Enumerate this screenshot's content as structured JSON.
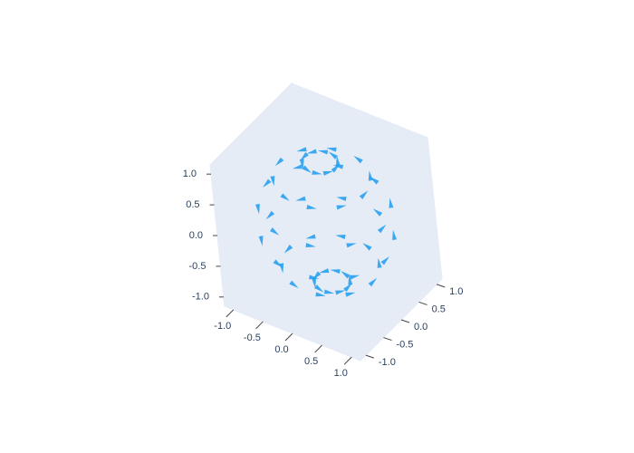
{
  "chart_data": {
    "type": "cone",
    "color": "#1f9cf0",
    "x": [
      0.26,
      0.21,
      0.08,
      -0.08,
      -0.21,
      -0.26,
      -0.21,
      -0.08,
      0.08,
      0.21,
      0.71,
      0.57,
      0.22,
      -0.22,
      -0.57,
      -0.71,
      -0.57,
      -0.22,
      0.22,
      0.57,
      0.97,
      0.78,
      0.3,
      -0.3,
      -0.78,
      -0.97,
      -0.78,
      -0.3,
      0.3,
      0.78,
      0.97,
      0.78,
      0.3,
      -0.3,
      -0.78,
      -0.97,
      -0.78,
      -0.3,
      0.3,
      0.78,
      0.71,
      0.57,
      0.22,
      -0.22,
      -0.57,
      -0.71,
      -0.57,
      -0.22,
      0.22,
      0.57,
      0.26,
      0.21,
      0.08,
      -0.08,
      -0.21,
      -0.26,
      -0.21,
      -0.08,
      0.08,
      0.21
    ],
    "y": [
      0,
      0.15,
      0.25,
      0.25,
      0.15,
      0,
      -0.15,
      -0.25,
      -0.25,
      -0.15,
      0,
      0.42,
      0.68,
      0.68,
      0.42,
      0,
      -0.42,
      -0.68,
      -0.68,
      -0.42,
      0,
      0.57,
      0.92,
      0.92,
      0.57,
      0,
      -0.57,
      -0.92,
      -0.92,
      -0.57,
      0,
      0.57,
      0.92,
      0.92,
      0.57,
      0,
      -0.57,
      -0.92,
      -0.92,
      -0.57,
      0,
      0.42,
      0.68,
      0.68,
      0.42,
      0,
      -0.42,
      -0.68,
      -0.68,
      -0.42,
      0,
      0.15,
      0.25,
      0.25,
      0.15,
      0,
      -0.15,
      -0.25,
      -0.25,
      -0.15
    ],
    "z": [
      0.97,
      0.97,
      0.97,
      0.97,
      0.97,
      0.97,
      0.97,
      0.97,
      0.97,
      0.97,
      0.71,
      0.71,
      0.71,
      0.71,
      0.71,
      0.71,
      0.71,
      0.71,
      0.71,
      0.71,
      0.26,
      0.26,
      0.26,
      0.26,
      0.26,
      0.26,
      0.26,
      0.26,
      0.26,
      0.26,
      -0.26,
      -0.26,
      -0.26,
      -0.26,
      -0.26,
      -0.26,
      -0.26,
      -0.26,
      -0.26,
      -0.26,
      -0.71,
      -0.71,
      -0.71,
      -0.71,
      -0.71,
      -0.71,
      -0.71,
      -0.71,
      -0.71,
      -0.71,
      -0.97,
      -0.97,
      -0.97,
      -0.97,
      -0.97,
      -0.97,
      -0.97,
      -0.97,
      -0.97,
      -0.97
    ],
    "u": [
      0,
      -0.15,
      -0.25,
      -0.25,
      -0.15,
      0,
      0.15,
      0.25,
      0.25,
      0.15,
      0,
      -0.42,
      -0.68,
      -0.68,
      -0.42,
      0,
      0.42,
      0.68,
      0.68,
      0.42,
      0,
      -0.57,
      -0.92,
      -0.92,
      -0.57,
      0,
      0.57,
      0.92,
      0.92,
      0.57,
      0,
      -0.57,
      -0.92,
      -0.92,
      -0.57,
      0,
      0.57,
      0.92,
      0.92,
      0.57,
      0,
      -0.42,
      -0.68,
      -0.68,
      -0.42,
      0,
      0.42,
      0.68,
      0.68,
      0.42,
      0,
      -0.15,
      -0.25,
      -0.25,
      -0.15,
      0,
      0.15,
      0.25,
      0.25,
      0.15
    ],
    "v": [
      0.26,
      0.21,
      0.08,
      -0.08,
      -0.21,
      -0.26,
      -0.21,
      -0.08,
      0.08,
      0.21,
      0.71,
      0.57,
      0.22,
      -0.22,
      -0.57,
      -0.71,
      -0.57,
      -0.22,
      0.22,
      0.57,
      0.97,
      0.78,
      0.3,
      -0.3,
      -0.78,
      -0.97,
      -0.78,
      -0.3,
      0.3,
      0.78,
      0.97,
      0.78,
      0.3,
      -0.3,
      -0.78,
      -0.97,
      -0.78,
      -0.3,
      0.3,
      0.78,
      0.71,
      0.57,
      0.22,
      -0.22,
      -0.57,
      -0.71,
      -0.57,
      -0.22,
      0.22,
      0.57,
      0.26,
      0.21,
      0.08,
      -0.08,
      -0.21,
      -0.26,
      -0.21,
      -0.08,
      0.08,
      0.21
    ],
    "w": [
      0,
      0,
      0,
      0,
      0,
      0,
      0,
      0,
      0,
      0,
      0,
      0,
      0,
      0,
      0,
      0,
      0,
      0,
      0,
      0,
      0,
      0,
      0,
      0,
      0,
      0,
      0,
      0,
      0,
      0,
      0,
      0,
      0,
      0,
      0,
      0,
      0,
      0,
      0,
      0,
      0,
      0,
      0,
      0,
      0,
      0,
      0,
      0,
      0,
      0,
      0,
      0,
      0,
      0,
      0,
      0,
      0,
      0,
      0,
      0
    ],
    "xlim": [
      -1.15,
      1.15
    ],
    "ylim": [
      -1.15,
      1.15
    ],
    "zlim": [
      -1.15,
      1.15
    ],
    "xticks": [
      {
        "value": -1,
        "label": "-1.0"
      },
      {
        "value": -0.5,
        "label": "-0.5"
      },
      {
        "value": 0,
        "label": "0.0"
      },
      {
        "value": 0.5,
        "label": "0.5"
      },
      {
        "value": 1,
        "label": "1.0"
      }
    ],
    "yticks": [
      {
        "value": -1,
        "label": "-1.0"
      },
      {
        "value": -0.5,
        "label": "-0.5"
      },
      {
        "value": 0,
        "label": "0.0"
      },
      {
        "value": 0.5,
        "label": "0.5"
      },
      {
        "value": 1,
        "label": "1.0"
      }
    ],
    "zticks": [
      {
        "value": -1,
        "label": "-1.0"
      },
      {
        "value": -0.5,
        "label": "-0.5"
      },
      {
        "value": 0,
        "label": "0.0"
      },
      {
        "value": 0.5,
        "label": "0.5"
      },
      {
        "value": 1,
        "label": "1.0"
      }
    ]
  }
}
